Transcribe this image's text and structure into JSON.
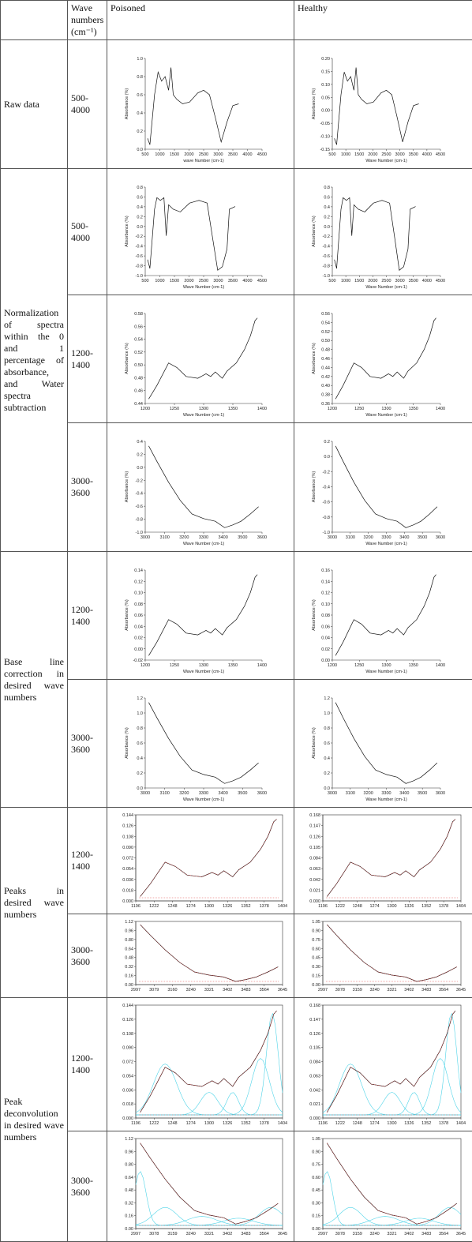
{
  "header": {
    "wave": "Wave numbers (cm⁻¹)",
    "poisoned": "Poisoned",
    "healthy": "Healthy"
  },
  "sections": [
    {
      "label": "Raw data",
      "rows": [
        {
          "range": "500-4000",
          "poisoned": {
            "xlabel": "wave Number (cm-1)",
            "ylabel": "Absorbance (%)",
            "xticks": [
              "500",
              "1000",
              "1500",
              "2000",
              "2500",
              "3000",
              "3500",
              "4000",
              "4500"
            ],
            "yticks": [
              "0.0",
              "0.2",
              "0.4",
              "0.6",
              "0.8",
              "1.0"
            ]
          },
          "healthy": {
            "xlabel": "Wave Number (cm-1)",
            "ylabel": "Absorbance (%)",
            "xticks": [
              "500",
              "1000",
              "1500",
              "2000",
              "2500",
              "3000",
              "3500",
              "4000",
              "4500"
            ],
            "yticks": [
              "-0.15",
              "-0.10",
              "-0.05",
              "0.00",
              "0.05",
              "0.10",
              "0.15",
              "0.20"
            ]
          }
        }
      ]
    },
    {
      "label": "Normalization of spectra within the 0 and 1 percentage of absorbance, and Water spectra subtraction",
      "rows": [
        {
          "range": "500-4000",
          "poisoned": {
            "xlabel": "Wave Number (cm-1)",
            "ylabel": "Absorbance (%)",
            "xticks": [
              "500",
              "1000",
              "1500",
              "2000",
              "2500",
              "3000",
              "3500",
              "4000",
              "4500"
            ],
            "yticks": [
              "-1.0",
              "-0.8",
              "-0.6",
              "-0.4",
              "-0.2",
              "0.0",
              "0.2",
              "0.4",
              "0.6",
              "0.8"
            ]
          },
          "healthy": {
            "xlabel": "Wave Number (cm-1)",
            "ylabel": "Absorbance (%)",
            "xticks": [
              "500",
              "1000",
              "1500",
              "2000",
              "2500",
              "3000",
              "3500",
              "4000",
              "4500"
            ],
            "yticks": [
              "-1.0",
              "-0.8",
              "-0.6",
              "-0.4",
              "-0.2",
              "0.0",
              "0.2",
              "0.4",
              "0.6",
              "0.8"
            ]
          }
        },
        {
          "range": "1200-1400",
          "poisoned": {
            "xlabel": "Wave Number (cm-1)",
            "ylabel": "Absorbance (%)",
            "xticks": [
              "1200",
              "1250",
              "1300",
              "1350",
              "1400"
            ],
            "yticks": [
              "0.44",
              "0.46",
              "0.48",
              "0.50",
              "0.52",
              "0.54",
              "0.56",
              "0.58"
            ]
          },
          "healthy": {
            "xlabel": "Wave Number (cm-1)",
            "ylabel": "Absorbance (%)",
            "xticks": [
              "1200",
              "1250",
              "1300",
              "1350",
              "1400"
            ],
            "yticks": [
              "0.36",
              "0.38",
              "0.40",
              "0.42",
              "0.44",
              "0.46",
              "0.48",
              "0.50",
              "0.52",
              "0.54",
              "0.56"
            ]
          }
        },
        {
          "range": "3000-3600",
          "poisoned": {
            "xlabel": "Wave Number (cm-1)",
            "ylabel": "Absorbance (%)",
            "xticks": [
              "3000",
              "3100",
              "3200",
              "3300",
              "3400",
              "3500",
              "3600"
            ],
            "yticks": [
              "-1.0",
              "-0.8",
              "-0.6",
              "-0.4",
              "-0.2",
              "0.0",
              "0.2",
              "0.4"
            ]
          },
          "healthy": {
            "xlabel": "Wave Number (cm-1)",
            "ylabel": "Absorbance (%)",
            "xticks": [
              "3000",
              "3100",
              "3200",
              "3300",
              "3400",
              "3500",
              "3600"
            ],
            "yticks": [
              "-1.0",
              "-0.8",
              "-0.6",
              "-0.4",
              "-0.2",
              "0.0",
              "0.2"
            ]
          }
        }
      ]
    },
    {
      "label": "Base line correction in desired wave numbers",
      "rows": [
        {
          "range": "1200-1400",
          "poisoned": {
            "xlabel": "Wave Number (cm-1)",
            "ylabel": "Absorbance (%)",
            "xticks": [
              "1200",
              "1250",
              "1300",
              "1350",
              "1400"
            ],
            "yticks": [
              "-0.02",
              "0.00",
              "0.02",
              "0.04",
              "0.06",
              "0.08",
              "0.10",
              "0.12",
              "0.14"
            ]
          },
          "healthy": {
            "xlabel": "Wave Number (cm-1)",
            "ylabel": "Absorbance (%)",
            "xticks": [
              "1200",
              "1250",
              "1300",
              "1350",
              "1400"
            ],
            "yticks": [
              "0.00",
              "0.02",
              "0.04",
              "0.06",
              "0.08",
              "0.10",
              "0.12",
              "0.14",
              "0.16"
            ]
          }
        },
        {
          "range": "3000-3600",
          "poisoned": {
            "xlabel": "Wave Number (cm-1)",
            "ylabel": "Absorbance (%)",
            "xticks": [
              "3000",
              "3100",
              "3200",
              "3300",
              "3400",
              "3500",
              "3600"
            ],
            "yticks": [
              "0.0",
              "0.2",
              "0.4",
              "0.6",
              "0.8",
              "1.0",
              "1.2"
            ]
          },
          "healthy": {
            "xlabel": "Wave Number (cm-1)",
            "ylabel": "Absorbance (%)",
            "xticks": [
              "3000",
              "3100",
              "3200",
              "3300",
              "3400",
              "3500",
              "3600"
            ],
            "yticks": [
              "0.0",
              "0.2",
              "0.4",
              "0.6",
              "0.8",
              "1.0",
              "1.2"
            ]
          }
        }
      ]
    },
    {
      "label": "Peaks in desired wave numbers",
      "rows": [
        {
          "range": "1200-1400",
          "poisoned": {
            "xticks": [
              "1196",
              "1222",
              "1248",
              "1274",
              "1300",
              "1326",
              "1352",
              "1378",
              "1404"
            ],
            "yticks": [
              "0.000",
              "0.018",
              "0.036",
              "0.054",
              "0.072",
              "0.090",
              "0.108",
              "0.126",
              "0.144"
            ]
          },
          "healthy": {
            "xticks": [
              "1196",
              "1222",
              "1248",
              "1274",
              "1300",
              "1326",
              "1352",
              "1378",
              "1404"
            ],
            "yticks": [
              "0.000",
              "0.021",
              "0.042",
              "0.063",
              "0.084",
              "0.105",
              "0.126",
              "0.147",
              "0.168"
            ]
          }
        },
        {
          "range": "3000-3600",
          "poisoned": {
            "xticks": [
              "2997",
              "3079",
              "3160",
              "3240",
              "3321",
              "3402",
              "3483",
              "3564",
              "3645"
            ],
            "yticks": [
              "0.00",
              "0.16",
              "0.32",
              "0.48",
              "0.64",
              "0.80",
              "0.96",
              "1.12"
            ]
          },
          "healthy": {
            "xticks": [
              "2997",
              "3078",
              "3159",
              "3240",
              "3321",
              "3402",
              "3483",
              "3564",
              "3645"
            ],
            "yticks": [
              "0.00",
              "0.15",
              "0.30",
              "0.45",
              "0.60",
              "0.75",
              "0.90",
              "1.05"
            ]
          }
        }
      ]
    },
    {
      "label": "Peak deconvolution in desired wave numbers",
      "rows": [
        {
          "range": "1200-1400",
          "poisoned": {
            "xticks": [
              "1196",
              "1222",
              "1248",
              "1274",
              "1300",
              "1326",
              "1352",
              "1378",
              "1404"
            ],
            "yticks": [
              "0.000",
              "0.018",
              "0.036",
              "0.054",
              "0.072",
              "0.090",
              "0.108",
              "0.126",
              "0.144"
            ]
          },
          "healthy": {
            "xticks": [
              "1196",
              "1222",
              "1248",
              "1274",
              "1300",
              "1326",
              "1352",
              "1378",
              "1404"
            ],
            "yticks": [
              "0.000",
              "0.021",
              "0.042",
              "0.063",
              "0.084",
              "0.105",
              "0.126",
              "0.147",
              "0.168"
            ]
          }
        },
        {
          "range": "3000-3600",
          "poisoned": {
            "xticks": [
              "2997",
              "3078",
              "3159",
              "3240",
              "3321",
              "3402",
              "3483",
              "3564",
              "3645"
            ],
            "yticks": [
              "0.00",
              "0.16",
              "0.32",
              "0.48",
              "0.64",
              "0.80",
              "0.96",
              "1.12"
            ]
          },
          "healthy": {
            "xticks": [
              "2997",
              "3078",
              "3159",
              "3240",
              "3321",
              "3402",
              "3483",
              "3564",
              "3645"
            ],
            "yticks": [
              "0.00",
              "0.15",
              "0.30",
              "0.45",
              "0.60",
              "0.75",
              "0.90",
              "1.05"
            ]
          }
        }
      ]
    }
  ]
}
